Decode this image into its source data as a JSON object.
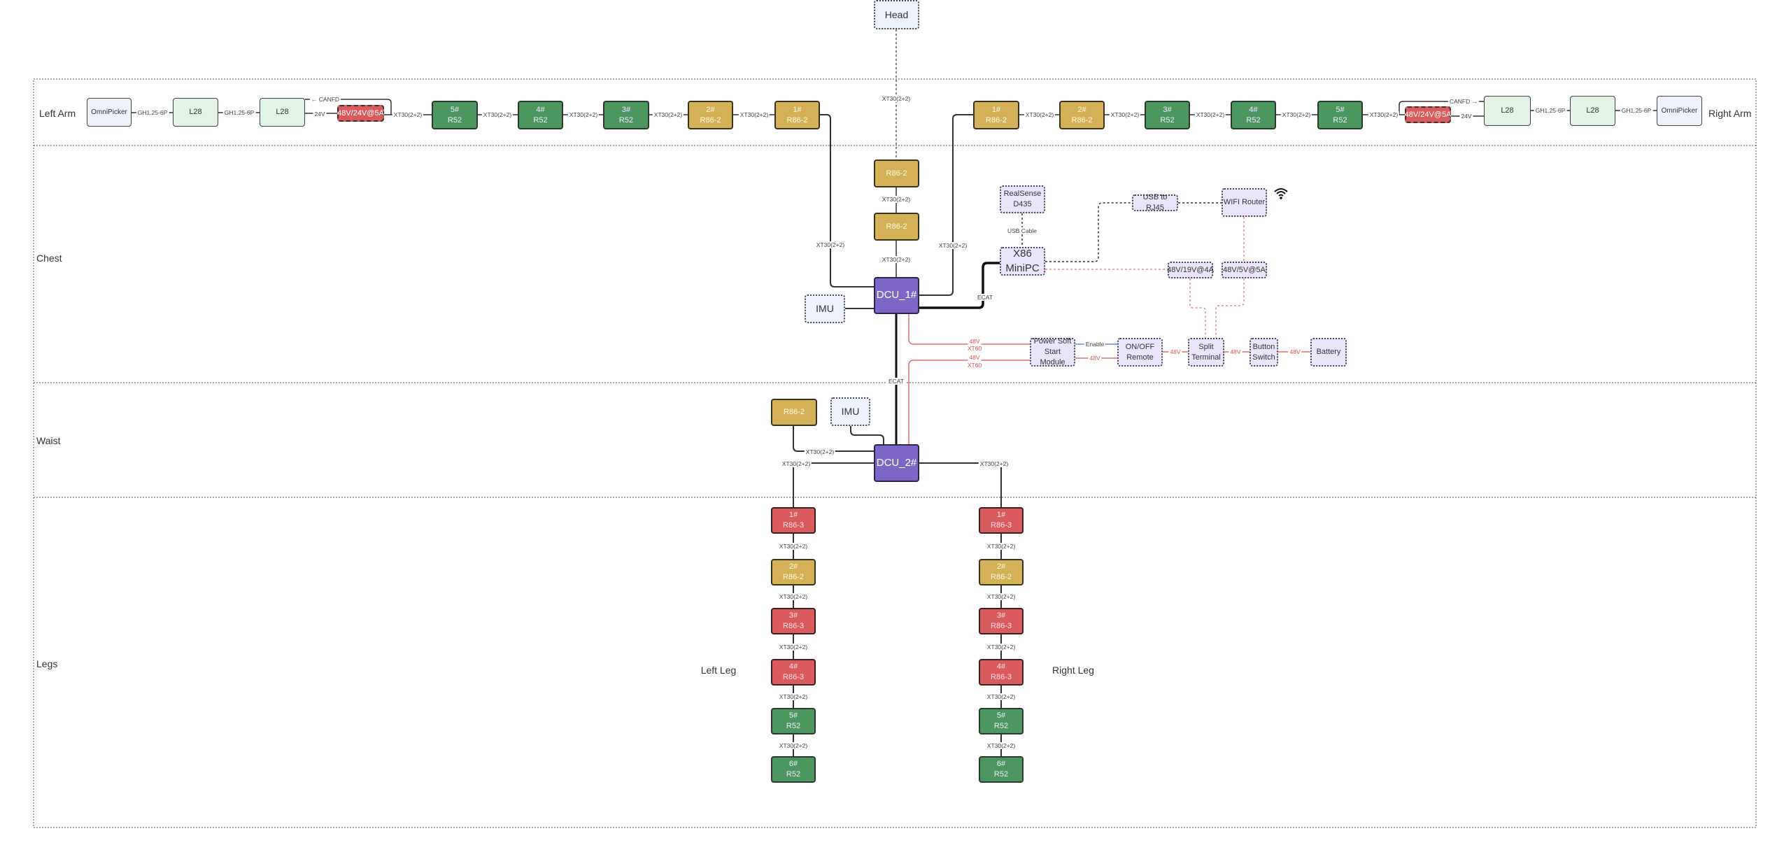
{
  "sections": [
    {
      "id": "arms",
      "label": "Left Arm"
    },
    {
      "id": "arms-right",
      "label": "Right Arm"
    },
    {
      "id": "chest",
      "label": "Chest"
    },
    {
      "id": "waist",
      "label": "Waist"
    },
    {
      "id": "legs",
      "label": "Legs"
    }
  ],
  "side_labels": {
    "left_leg": "Left Leg",
    "right_leg": "Right Leg"
  },
  "colors": {
    "actuator_r52": "#4e9660",
    "actuator_r86_2": "#d4b156",
    "actuator_r86_3": "#d95b5b",
    "dcu": "#7e66c7",
    "power_line": "#d9534f",
    "enable_line": "#5b8fd9"
  },
  "nodes": [
    {
      "id": "head",
      "l1": "Head",
      "type": "sensor"
    },
    {
      "id": "la_omni",
      "l1": "OmniPicker",
      "type": "gripper"
    },
    {
      "id": "la_l28a",
      "l1": "L28",
      "type": "hand"
    },
    {
      "id": "la_l28b",
      "l1": "L28",
      "type": "hand"
    },
    {
      "id": "la_dcdc",
      "l1": "48V/24V@5A",
      "type": "dcdc"
    },
    {
      "id": "la_5",
      "l1": "5#",
      "l2": "R52",
      "type": "motor-green"
    },
    {
      "id": "la_4",
      "l1": "4#",
      "l2": "R52",
      "type": "motor-green"
    },
    {
      "id": "la_3",
      "l1": "3#",
      "l2": "R52",
      "type": "motor-green"
    },
    {
      "id": "la_2",
      "l1": "2#",
      "l2": "R86-2",
      "type": "motor-tan"
    },
    {
      "id": "la_1",
      "l1": "1#",
      "l2": "R86-2",
      "type": "motor-tan"
    },
    {
      "id": "ra_1",
      "l1": "1#",
      "l2": "R86-2",
      "type": "motor-tan"
    },
    {
      "id": "ra_2",
      "l1": "2#",
      "l2": "R86-2",
      "type": "motor-tan"
    },
    {
      "id": "ra_3",
      "l1": "3#",
      "l2": "R52",
      "type": "motor-green"
    },
    {
      "id": "ra_4",
      "l1": "4#",
      "l2": "R52",
      "type": "motor-green"
    },
    {
      "id": "ra_5",
      "l1": "5#",
      "l2": "R52",
      "type": "motor-green"
    },
    {
      "id": "ra_dcdc",
      "l1": "48V/24V@5A",
      "type": "dcdc"
    },
    {
      "id": "ra_l28a",
      "l1": "L28",
      "type": "hand"
    },
    {
      "id": "ra_l28b",
      "l1": "L28",
      "type": "hand"
    },
    {
      "id": "ra_omni",
      "l1": "OmniPicker",
      "type": "gripper"
    },
    {
      "id": "neck_1",
      "l1": "R86-2",
      "type": "motor-tan"
    },
    {
      "id": "neck_2",
      "l1": "R86-2",
      "type": "motor-tan"
    },
    {
      "id": "dcu1",
      "l1": "DCU_1#",
      "type": "dcu"
    },
    {
      "id": "imu1",
      "l1": "IMU",
      "type": "sensor"
    },
    {
      "id": "realsense",
      "l1": "RealSense",
      "l2": "D435",
      "type": "pc"
    },
    {
      "id": "minipc",
      "l1": "X86",
      "l2": "MiniPC",
      "type": "pc big"
    },
    {
      "id": "usb_rj45",
      "l1": "USB to RJ45",
      "type": "pc"
    },
    {
      "id": "wifi_router",
      "l1": "WIFI Router",
      "type": "pc"
    },
    {
      "id": "dc19",
      "l1": "48V/19V@4A",
      "type": "pc"
    },
    {
      "id": "dc5",
      "l1": "48V/5V@5A",
      "type": "pc"
    },
    {
      "id": "softstart",
      "l1": "Power Soft",
      "l2": "Start Module",
      "type": "pc"
    },
    {
      "id": "onoff",
      "l1": "ON/OFF",
      "l2": "Remote",
      "type": "pc"
    },
    {
      "id": "split",
      "l1": "Split",
      "l2": "Terminal",
      "type": "pc"
    },
    {
      "id": "button",
      "l1": "Button",
      "l2": "Switch",
      "type": "pc"
    },
    {
      "id": "battery",
      "l1": "Battery",
      "type": "pc"
    },
    {
      "id": "waist_m",
      "l1": "R86-2",
      "type": "motor-tan"
    },
    {
      "id": "imu2",
      "l1": "IMU",
      "type": "sensor"
    },
    {
      "id": "dcu2",
      "l1": "DCU_2#",
      "type": "dcu"
    },
    {
      "id": "ll_1",
      "l1": "1#",
      "l2": "R86-3",
      "type": "motor-red"
    },
    {
      "id": "ll_2",
      "l1": "2#",
      "l2": "R86-2",
      "type": "motor-tan"
    },
    {
      "id": "ll_3",
      "l1": "3#",
      "l2": "R86-3",
      "type": "motor-red"
    },
    {
      "id": "ll_4",
      "l1": "4#",
      "l2": "R86-3",
      "type": "motor-red"
    },
    {
      "id": "ll_5",
      "l1": "5#",
      "l2": "R52",
      "type": "motor-green"
    },
    {
      "id": "ll_6",
      "l1": "6#",
      "l2": "R52",
      "type": "motor-green"
    },
    {
      "id": "rl_1",
      "l1": "1#",
      "l2": "R86-3",
      "type": "motor-red"
    },
    {
      "id": "rl_2",
      "l1": "2#",
      "l2": "R86-2",
      "type": "motor-tan"
    },
    {
      "id": "rl_3",
      "l1": "3#",
      "l2": "R86-3",
      "type": "motor-red"
    },
    {
      "id": "rl_4",
      "l1": "4#",
      "l2": "R86-3",
      "type": "motor-red"
    },
    {
      "id": "rl_5",
      "l1": "5#",
      "l2": "R52",
      "type": "motor-green"
    },
    {
      "id": "rl_6",
      "l1": "6#",
      "l2": "R52",
      "type": "motor-green"
    }
  ],
  "edge_labels": [
    {
      "id": "e_la_g1",
      "text": "GH1.25-6P"
    },
    {
      "id": "e_la_g2",
      "text": "GH1.25-6P"
    },
    {
      "id": "e_la_24",
      "text": "24V"
    },
    {
      "id": "e_la_can",
      "text": "← CANFD"
    },
    {
      "id": "e_la_x1",
      "text": "XT30(2+2)"
    },
    {
      "id": "e_la_x2",
      "text": "XT30(2+2)"
    },
    {
      "id": "e_la_x3",
      "text": "XT30(2+2)"
    },
    {
      "id": "e_la_x4",
      "text": "XT30(2+2)"
    },
    {
      "id": "e_la_x5",
      "text": "XT30(2+2)"
    },
    {
      "id": "e_ra_x1",
      "text": "XT30(2+2)"
    },
    {
      "id": "e_ra_x2",
      "text": "XT30(2+2)"
    },
    {
      "id": "e_ra_x3",
      "text": "XT30(2+2)"
    },
    {
      "id": "e_ra_x4",
      "text": "XT30(2+2)"
    },
    {
      "id": "e_ra_x5",
      "text": "XT30(2+2)"
    },
    {
      "id": "e_ra_24",
      "text": "24V"
    },
    {
      "id": "e_ra_can",
      "text": "CANFD →"
    },
    {
      "id": "e_ra_g1",
      "text": "GH1.25-6P"
    },
    {
      "id": "e_ra_g2",
      "text": "GH1.25-6P"
    },
    {
      "id": "e_head",
      "text": "XT30(2+2)"
    },
    {
      "id": "e_neck1",
      "text": "XT30(2+2)"
    },
    {
      "id": "e_neck2",
      "text": "XT30(2+2)"
    },
    {
      "id": "e_larm",
      "text": "XT30(2+2)"
    },
    {
      "id": "e_rarm",
      "text": "XT30(2+2)"
    },
    {
      "id": "e_ecat_pc",
      "text": "ECAT"
    },
    {
      "id": "e_usb",
      "text": "USB Cable"
    },
    {
      "id": "e_p1a",
      "text": "48V",
      "red": true
    },
    {
      "id": "e_p1b",
      "text": "XT60",
      "red": true
    },
    {
      "id": "e_p2a",
      "text": "48V",
      "red": true
    },
    {
      "id": "e_p2b",
      "text": "XT60",
      "red": true
    },
    {
      "id": "e_enable",
      "text": "Enable"
    },
    {
      "id": "e_ss48",
      "text": "48V",
      "red": true
    },
    {
      "id": "e_on48",
      "text": "48V",
      "red": true
    },
    {
      "id": "e_sp48",
      "text": "48V",
      "red": true
    },
    {
      "id": "e_bt48",
      "text": "48V",
      "red": true
    },
    {
      "id": "e_ecat",
      "text": "ECAT"
    },
    {
      "id": "e_waist",
      "text": "XT30(2+2)"
    },
    {
      "id": "e_ll0",
      "text": "XT30(2+2)"
    },
    {
      "id": "e_rl0",
      "text": "XT30(2+2)"
    },
    {
      "id": "e_ll1",
      "text": "XT30(2+2)"
    },
    {
      "id": "e_ll2",
      "text": "XT30(2+2)"
    },
    {
      "id": "e_ll3",
      "text": "XT30(2+2)"
    },
    {
      "id": "e_ll4",
      "text": "XT30(2+2)"
    },
    {
      "id": "e_ll5",
      "text": "XT30(2+2)"
    },
    {
      "id": "e_rl1",
      "text": "XT30(2+2)"
    },
    {
      "id": "e_rl2",
      "text": "XT30(2+2)"
    },
    {
      "id": "e_rl3",
      "text": "XT30(2+2)"
    },
    {
      "id": "e_rl4",
      "text": "XT30(2+2)"
    },
    {
      "id": "e_rl5",
      "text": "XT30(2+2)"
    }
  ],
  "icons": {
    "wifi": "wifi-icon"
  }
}
